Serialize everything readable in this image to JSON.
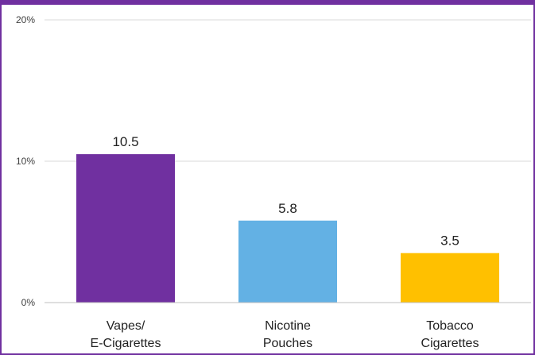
{
  "chart_data": {
    "type": "bar",
    "title": "",
    "xlabel": "",
    "ylabel": "",
    "categories": [
      [
        "Vapes/",
        "E-Cigarettes"
      ],
      [
        "Nicotine",
        "Pouches"
      ],
      [
        "Tobacco",
        "Cigarettes"
      ]
    ],
    "values": [
      10.5,
      5.8,
      3.5
    ],
    "data_labels": [
      "10.5",
      "5.8",
      "3.5"
    ],
    "colors": [
      "#7030a0",
      "#63b1e4",
      "#ffc000"
    ],
    "ylim": [
      0,
      20
    ],
    "yticks": [
      {
        "value": 0,
        "label": "0%"
      },
      {
        "value": 10,
        "label": "10%"
      },
      {
        "value": 20,
        "label": "20%"
      }
    ],
    "grid": true,
    "legend": "none"
  },
  "style": {
    "frame_color": "#7030a0",
    "grid_color": "#d9d9d9",
    "axis_color": "#bfbfbf"
  }
}
